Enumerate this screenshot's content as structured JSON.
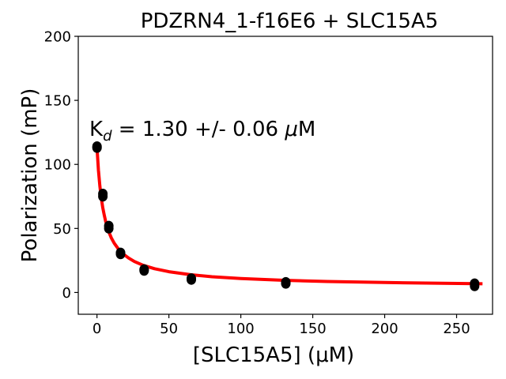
{
  "chart_data": {
    "type": "scatter",
    "title": "PDZRN4_1-f16E6 + SLC15A5",
    "xlabel": "[SLC15A5] (μM)",
    "ylabel": "Polarization (mP)",
    "annotation": {
      "prefix": "K",
      "subscript": "d",
      "text": " = 1.30 +/- 0.06 ",
      "unit_symbol": "μ",
      "unit": "M"
    },
    "xlim": [
      -13,
      275
    ],
    "ylim": [
      -17,
      200
    ],
    "xticks": [
      0,
      50,
      100,
      150,
      200,
      250
    ],
    "yticks": [
      0,
      50,
      100,
      150,
      200
    ],
    "grid": false,
    "series": [
      {
        "kind": "points",
        "color": "#000000",
        "points": [
          [
            0,
            113
          ],
          [
            0,
            114
          ],
          [
            4.1,
            75
          ],
          [
            4.1,
            77
          ],
          [
            8.2,
            50
          ],
          [
            8.2,
            52
          ],
          [
            16.4,
            30
          ],
          [
            16.4,
            31
          ],
          [
            32.8,
            17
          ],
          [
            32.8,
            18
          ],
          [
            65.6,
            10
          ],
          [
            65.6,
            11
          ],
          [
            131.3,
            7
          ],
          [
            131.3,
            8
          ],
          [
            262.5,
            5
          ],
          [
            262.5,
            7
          ]
        ]
      },
      {
        "kind": "fit",
        "color": "#ff0000",
        "x": [
          0,
          1,
          2,
          3,
          4,
          5,
          6,
          8,
          10,
          12,
          15,
          18,
          22,
          26,
          32,
          40,
          50,
          65,
          80,
          100,
          130,
          160,
          200,
          240,
          268
        ],
        "y": [
          113.0,
          95.5,
          83.2,
          73.8,
          66.5,
          60.6,
          55.6,
          48.0,
          42.6,
          38.4,
          33.8,
          30.3,
          26.9,
          24.2,
          21.3,
          18.6,
          16.2,
          13.9,
          12.3,
          10.9,
          9.5,
          8.6,
          7.8,
          7.2,
          6.8
        ]
      }
    ]
  }
}
